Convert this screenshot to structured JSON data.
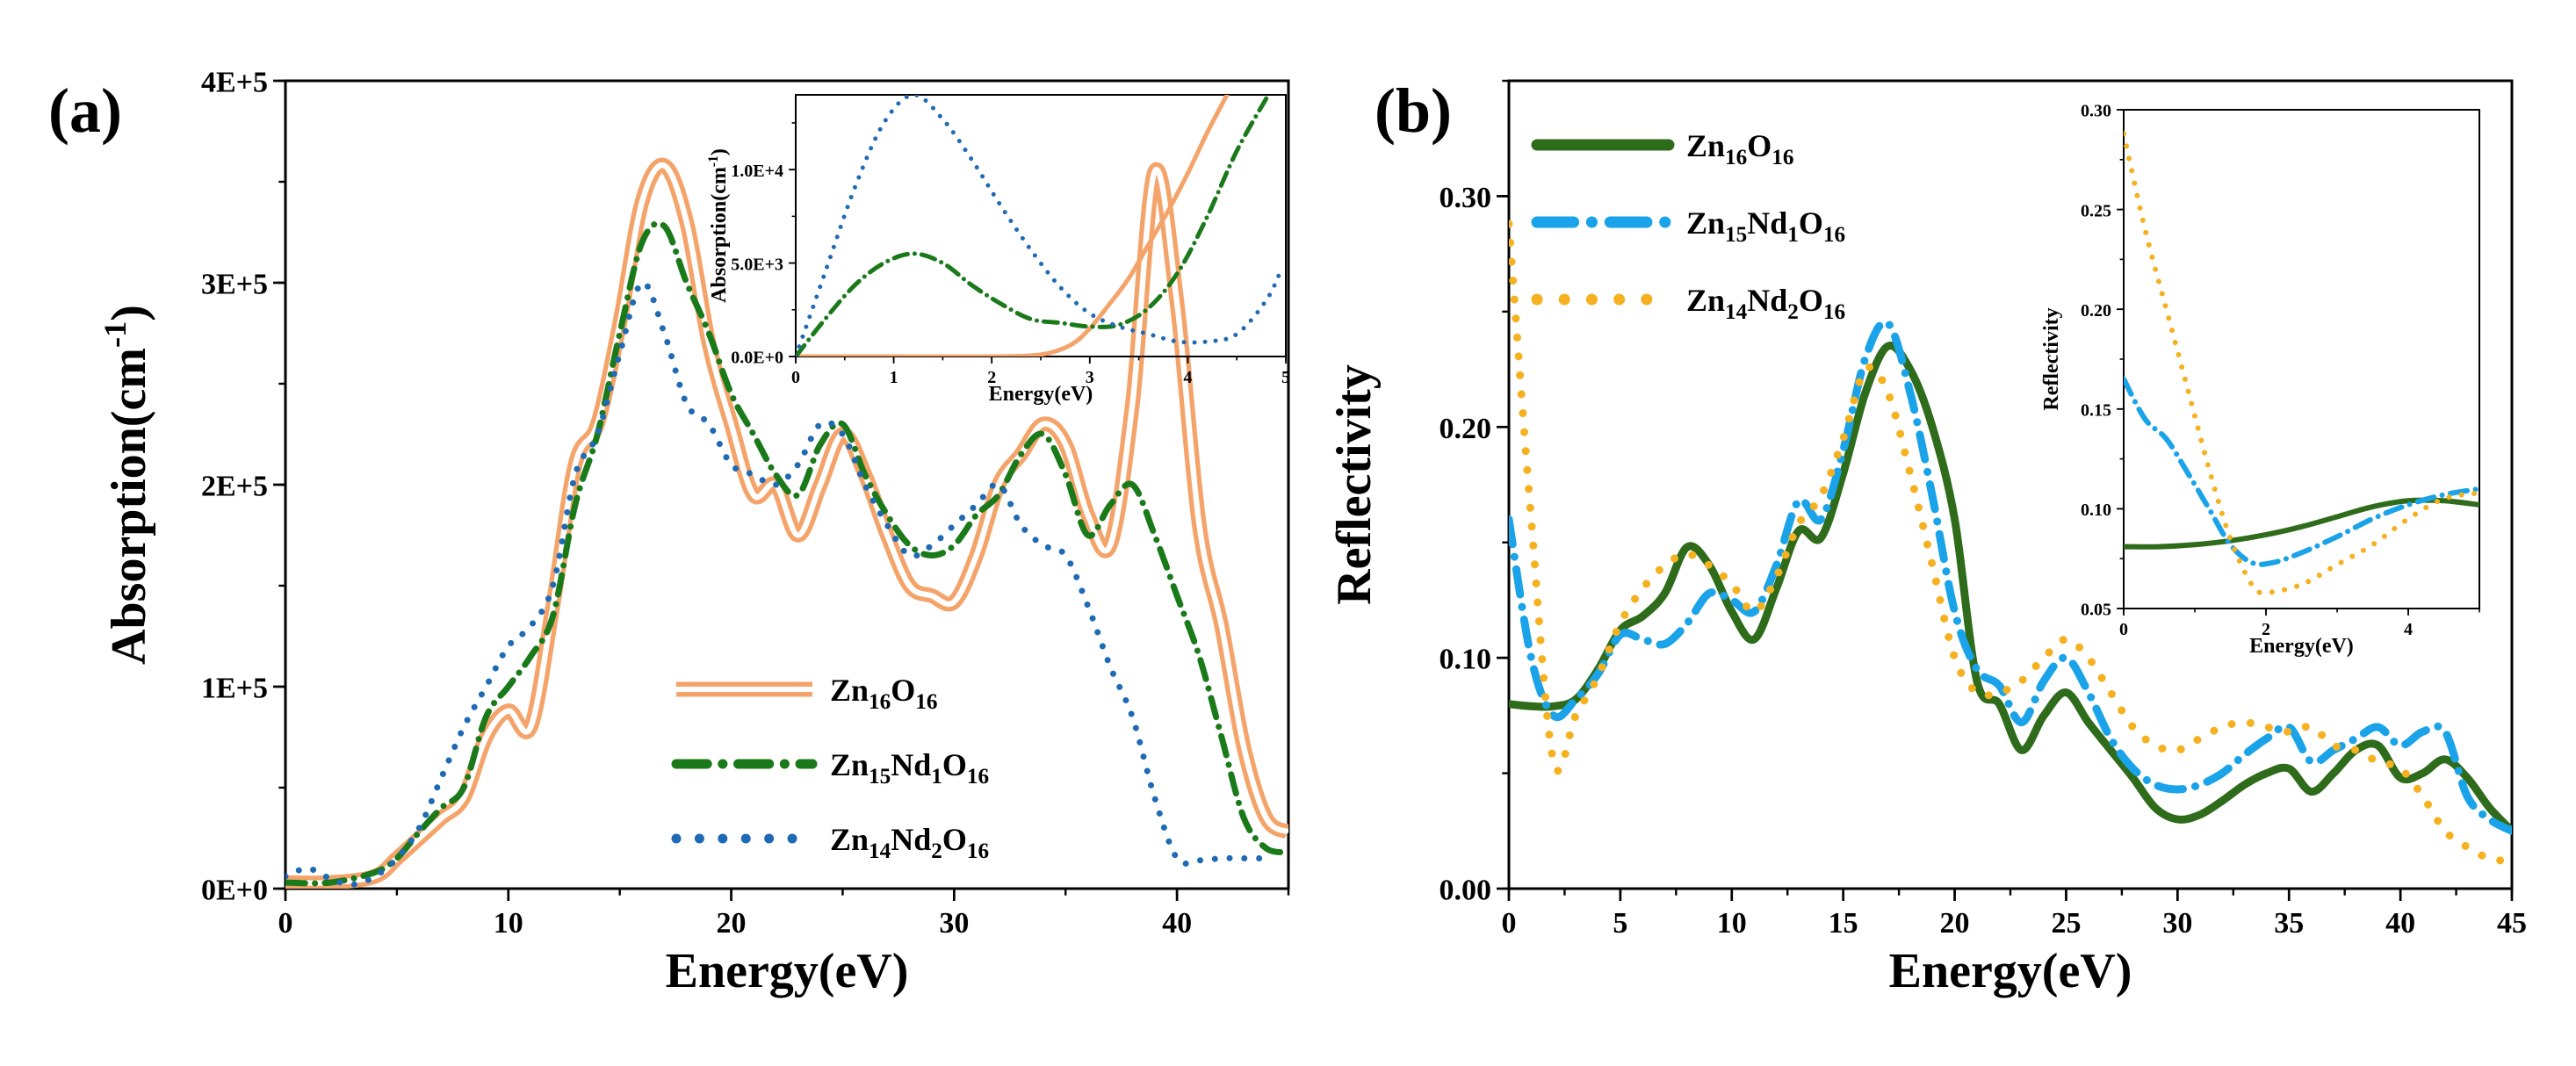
{
  "chart_data": [
    {
      "type": "line",
      "panel_label": "(a)",
      "xlabel": "Energy(eV)",
      "ylabel": "Absorption(cm^-1)",
      "xlim": [
        0,
        45
      ],
      "ylim": [
        0,
        400000
      ],
      "xticks": [
        0,
        10,
        20,
        30,
        40
      ],
      "yticks": [
        0,
        100000,
        200000,
        300000,
        400000
      ],
      "ytick_labels": [
        "0E+0",
        "1E+5",
        "2E+5",
        "3E+5",
        "4E+5"
      ],
      "legend_position": "lower-right",
      "series": [
        {
          "name": "Zn16O16",
          "color": "#F4A46A",
          "style": "double",
          "x": [
            0,
            2,
            4,
            5,
            6,
            7,
            8,
            9,
            10,
            11,
            12,
            13,
            14,
            15,
            16,
            17,
            18,
            19,
            20,
            21,
            22,
            23,
            24,
            25,
            26,
            27,
            28,
            29,
            30,
            31,
            32,
            33,
            34,
            35,
            36,
            37,
            38,
            39,
            40,
            41,
            42,
            43,
            44,
            45
          ],
          "y": [
            3000,
            3000,
            6000,
            15000,
            25000,
            35000,
            45000,
            75000,
            88000,
            80000,
            140000,
            210000,
            230000,
            280000,
            340000,
            358000,
            330000,
            270000,
            230000,
            195000,
            200000,
            175000,
            200000,
            225000,
            205000,
            175000,
            150000,
            145000,
            142000,
            165000,
            200000,
            215000,
            230000,
            220000,
            185000,
            170000,
            240000,
            355000,
            290000,
            180000,
            130000,
            70000,
            35000,
            28000
          ]
        },
        {
          "name": "Zn15Nd1O16",
          "color": "#1A7A1A",
          "style": "dashdot",
          "x": [
            0,
            2,
            4,
            5,
            6,
            7,
            8,
            9,
            10,
            11,
            12,
            13,
            14,
            15,
            16,
            17,
            18,
            19,
            20,
            21,
            22,
            23,
            24,
            25,
            26,
            27,
            28,
            29,
            30,
            31,
            32,
            33,
            34,
            35,
            36,
            37,
            38,
            39,
            40,
            41,
            42,
            43,
            44,
            45
          ],
          "y": [
            3000,
            3000,
            8000,
            15000,
            28000,
            40000,
            50000,
            85000,
            100000,
            115000,
            135000,
            190000,
            225000,
            275000,
            320000,
            328000,
            300000,
            275000,
            245000,
            225000,
            205000,
            195000,
            220000,
            230000,
            205000,
            185000,
            170000,
            165000,
            170000,
            185000,
            195000,
            215000,
            225000,
            205000,
            175000,
            190000,
            200000,
            175000,
            145000,
            115000,
            75000,
            35000,
            20000,
            18000
          ]
        },
        {
          "name": "Zn14Nd2O16",
          "color": "#1F6AB4",
          "style": "dotted",
          "x": [
            0,
            1,
            2,
            3,
            4,
            5,
            6,
            7,
            8,
            9,
            10,
            11,
            12,
            13,
            14,
            15,
            16,
            17,
            18,
            19,
            20,
            21,
            22,
            23,
            24,
            25,
            26,
            27,
            28,
            29,
            30,
            31,
            32,
            33,
            34,
            35,
            36,
            37,
            38,
            39,
            40,
            41,
            42,
            43,
            44
          ],
          "y": [
            6000,
            10000,
            5000,
            2000,
            6000,
            15000,
            30000,
            55000,
            80000,
            100000,
            120000,
            130000,
            150000,
            205000,
            225000,
            265000,
            300000,
            275000,
            240000,
            230000,
            210000,
            205000,
            200000,
            210000,
            230000,
            225000,
            200000,
            180000,
            165000,
            170000,
            180000,
            190000,
            200000,
            180000,
            170000,
            165000,
            140000,
            110000,
            85000,
            45000,
            15000,
            14000,
            15000,
            15000,
            15000
          ]
        }
      ]
    },
    {
      "type": "line",
      "panel_label": "",
      "role": "inset of (a)",
      "xlabel": "Energy(eV)",
      "ylabel": "Absorption(cm^-1)",
      "xlim": [
        0,
        5
      ],
      "ylim": [
        0,
        14000
      ],
      "xticks": [
        0,
        1,
        2,
        3,
        4,
        5
      ],
      "yticks": [
        0,
        5000,
        10000
      ],
      "ytick_labels": [
        "0.0E+0",
        "5.0E+3",
        "1.0E+4"
      ],
      "series": [
        {
          "name": "Zn16O16",
          "color": "#F4A46A",
          "style": "solid",
          "x": [
            0,
            1,
            2,
            2.5,
            2.8,
            3.0,
            3.2,
            3.4,
            3.6,
            3.8,
            4.0,
            4.2,
            4.4
          ],
          "y": [
            0,
            0,
            0,
            100,
            600,
            1500,
            2800,
            4200,
            6000,
            7800,
            9800,
            12000,
            14000
          ]
        },
        {
          "name": "Zn15Nd1O16",
          "color": "#1A7A1A",
          "style": "dashdot",
          "x": [
            0,
            0.3,
            0.6,
            0.9,
            1.2,
            1.5,
            1.8,
            2.1,
            2.4,
            2.7,
            3.0,
            3.3,
            3.6,
            3.9,
            4.2,
            4.5,
            4.8
          ],
          "y": [
            0,
            2000,
            3800,
            5000,
            5500,
            5000,
            3800,
            2800,
            2000,
            1800,
            1600,
            1700,
            2600,
            4500,
            7500,
            11000,
            13800
          ]
        },
        {
          "name": "Zn14Nd2O16",
          "color": "#1F6AB4",
          "style": "dotted",
          "x": [
            0,
            0.3,
            0.6,
            0.9,
            1.2,
            1.5,
            1.8,
            2.1,
            2.4,
            2.7,
            3.0,
            3.3,
            3.6,
            3.9,
            4.2,
            4.5,
            4.8,
            4.95
          ],
          "y": [
            0,
            4500,
            9000,
            12500,
            14000,
            12700,
            10500,
            8000,
            5700,
            3700,
            2300,
            1600,
            1200,
            800,
            800,
            1200,
            3000,
            4600
          ]
        }
      ]
    },
    {
      "type": "line",
      "panel_label": "(b)",
      "xlabel": "Energy(eV)",
      "ylabel": "Reflectivity",
      "xlim": [
        0,
        45
      ],
      "ylim": [
        0,
        0.35
      ],
      "xticks": [
        0,
        5,
        10,
        15,
        20,
        25,
        30,
        35,
        40,
        45
      ],
      "yticks": [
        0.0,
        0.1,
        0.2,
        0.3
      ],
      "ytick_labels": [
        "0.00",
        "0.10",
        "0.20",
        "0.30"
      ],
      "legend_position": "top-left",
      "series": [
        {
          "name": "Zn16O16",
          "color": "#2E6B1A",
          "style": "solid",
          "x": [
            0,
            1,
            2,
            3,
            4,
            5,
            6,
            7,
            8,
            9,
            10,
            11,
            12,
            13,
            14,
            15,
            16,
            17,
            18,
            19,
            20,
            21,
            22,
            23,
            24,
            25,
            26,
            27,
            28,
            29,
            30,
            31,
            32,
            33,
            34,
            35,
            36,
            37,
            38,
            39,
            40,
            41,
            42,
            43,
            44,
            45
          ],
          "y": [
            0.08,
            0.079,
            0.079,
            0.082,
            0.095,
            0.112,
            0.118,
            0.128,
            0.148,
            0.14,
            0.12,
            0.108,
            0.13,
            0.155,
            0.152,
            0.18,
            0.215,
            0.235,
            0.225,
            0.2,
            0.16,
            0.09,
            0.08,
            0.06,
            0.075,
            0.085,
            0.072,
            0.06,
            0.048,
            0.035,
            0.03,
            0.032,
            0.038,
            0.045,
            0.05,
            0.052,
            0.042,
            0.05,
            0.06,
            0.062,
            0.048,
            0.05,
            0.056,
            0.048,
            0.035,
            0.025
          ]
        },
        {
          "name": "Zn15Nd1O16",
          "color": "#1AA3E8",
          "style": "dashdot",
          "x": [
            0,
            1,
            2,
            3,
            4,
            5,
            6,
            7,
            8,
            9,
            10,
            11,
            12,
            13,
            14,
            15,
            16,
            17,
            18,
            19,
            20,
            21,
            22,
            23,
            24,
            25,
            26,
            27,
            28,
            29,
            30,
            31,
            32,
            33,
            34,
            35,
            36,
            37,
            38,
            39,
            40,
            41,
            42,
            43,
            44,
            45
          ],
          "y": [
            0.16,
            0.1,
            0.075,
            0.082,
            0.093,
            0.11,
            0.108,
            0.106,
            0.115,
            0.128,
            0.125,
            0.12,
            0.14,
            0.168,
            0.16,
            0.19,
            0.23,
            0.245,
            0.215,
            0.17,
            0.12,
            0.095,
            0.088,
            0.072,
            0.09,
            0.1,
            0.085,
            0.065,
            0.052,
            0.045,
            0.043,
            0.045,
            0.05,
            0.058,
            0.065,
            0.07,
            0.055,
            0.06,
            0.065,
            0.07,
            0.062,
            0.068,
            0.068,
            0.04,
            0.03,
            0.025
          ]
        },
        {
          "name": "Zn14Nd2O16",
          "color": "#F5B120",
          "style": "dotted",
          "x": [
            0,
            1,
            2,
            3,
            4,
            5,
            6,
            7,
            8,
            9,
            10,
            11,
            12,
            13,
            14,
            15,
            16,
            17,
            18,
            19,
            20,
            21,
            22,
            23,
            24,
            25,
            26,
            27,
            28,
            29,
            30,
            31,
            32,
            33,
            34,
            35,
            36,
            37,
            38,
            39,
            40,
            41,
            42,
            43,
            44,
            45
          ],
          "y": [
            0.288,
            0.16,
            0.055,
            0.075,
            0.092,
            0.115,
            0.13,
            0.14,
            0.145,
            0.14,
            0.132,
            0.12,
            0.135,
            0.158,
            0.17,
            0.195,
            0.225,
            0.215,
            0.18,
            0.14,
            0.1,
            0.085,
            0.085,
            0.09,
            0.1,
            0.108,
            0.1,
            0.085,
            0.07,
            0.062,
            0.06,
            0.065,
            0.07,
            0.072,
            0.07,
            0.068,
            0.07,
            0.062,
            0.06,
            0.055,
            0.052,
            0.04,
            0.025,
            0.018,
            0.013,
            0.012
          ]
        }
      ]
    },
    {
      "type": "line",
      "panel_label": "",
      "role": "inset of (b)",
      "xlabel": "Energy(eV)",
      "ylabel": "Reflectivity",
      "xlim": [
        0,
        5
      ],
      "ylim": [
        0.05,
        0.3
      ],
      "xticks": [
        0,
        2,
        4
      ],
      "yticks": [
        0.05,
        0.1,
        0.15,
        0.2,
        0.25,
        0.3
      ],
      "ytick_labels": [
        "0.05",
        "0.10",
        "0.15",
        "0.20",
        "0.25",
        "0.30"
      ],
      "series": [
        {
          "name": "Zn16O16",
          "color": "#2E6B1A",
          "style": "solid",
          "x": [
            0,
            0.5,
            1,
            1.5,
            2,
            2.5,
            3,
            3.5,
            4,
            4.5,
            5
          ],
          "y": [
            0.081,
            0.081,
            0.082,
            0.084,
            0.087,
            0.091,
            0.096,
            0.101,
            0.104,
            0.104,
            0.102
          ]
        },
        {
          "name": "Zn15Nd1O16",
          "color": "#1AA3E8",
          "style": "dashdot",
          "x": [
            0,
            0.3,
            0.6,
            0.9,
            1.2,
            1.5,
            1.8,
            2.1,
            2.5,
            3,
            3.5,
            4,
            4.5,
            5
          ],
          "y": [
            0.165,
            0.145,
            0.135,
            0.118,
            0.1,
            0.082,
            0.073,
            0.073,
            0.078,
            0.086,
            0.095,
            0.102,
            0.107,
            0.11
          ]
        },
        {
          "name": "Zn14Nd2O16",
          "color": "#F5B120",
          "style": "dotted",
          "x": [
            0,
            0.3,
            0.6,
            0.9,
            1.2,
            1.5,
            1.8,
            2.0,
            2.5,
            3,
            3.5,
            4,
            4.5,
            5
          ],
          "y": [
            0.288,
            0.24,
            0.2,
            0.16,
            0.12,
            0.085,
            0.062,
            0.058,
            0.062,
            0.072,
            0.082,
            0.095,
            0.105,
            0.108
          ]
        }
      ]
    }
  ]
}
